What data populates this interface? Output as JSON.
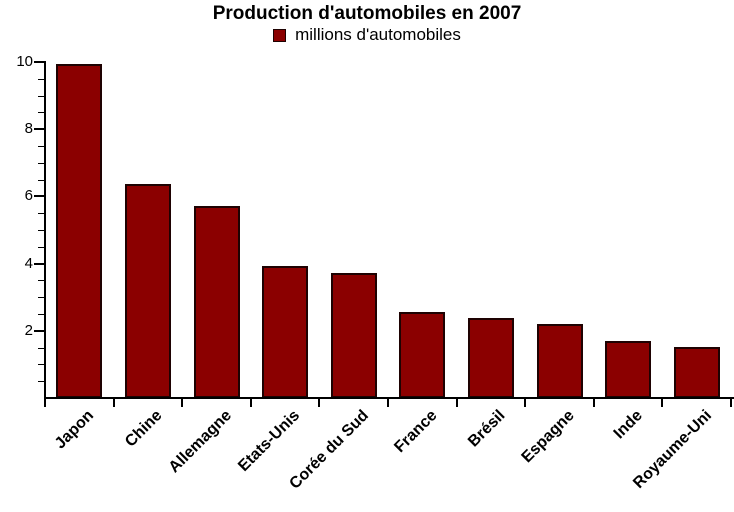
{
  "chart_data": {
    "type": "bar",
    "title": "Production d'automobiles en 2007",
    "legend_label": "millions d'automobiles",
    "categories": [
      "Japon",
      "Chine",
      "Allemagne",
      "Etats-Unis",
      "Corée du Sud",
      "France",
      "Brésil",
      "Espagne",
      "Inde",
      "Royaume-Uni"
    ],
    "values": [
      9.94,
      6.38,
      5.71,
      3.92,
      3.72,
      2.55,
      2.39,
      2.2,
      1.71,
      1.53
    ],
    "xlabel": "",
    "ylabel": "",
    "ylim": [
      0,
      10
    ],
    "ytick_labels": [
      "2",
      "4",
      "6",
      "8",
      "10"
    ],
    "yticks": [
      2,
      4,
      6,
      8,
      10
    ],
    "minor_tick_step": 0.5,
    "grid": false,
    "legend_position": "top-center",
    "bar_color": "#8b0000",
    "bar_border_color": "#1e0202",
    "axis_color": "#000000",
    "text_color": "#000000",
    "background_color": "#ffffff"
  }
}
